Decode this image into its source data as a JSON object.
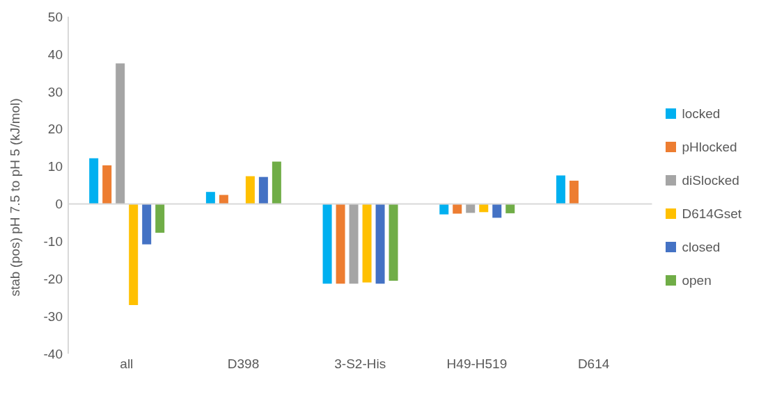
{
  "chart_data": {
    "type": "bar",
    "ylabel": "stab (pos) pH 7.5 to pH 5 (kJ/mol)",
    "categories": [
      "all",
      "D398",
      "3-S2-His",
      "H49-H519",
      "D614"
    ],
    "series": [
      {
        "name": "locked",
        "color": "#00b0f0",
        "values": [
          12.2,
          3.2,
          -21.3,
          -2.8,
          7.6
        ]
      },
      {
        "name": "pHlocked",
        "color": "#ed7d31",
        "values": [
          10.3,
          2.4,
          -21.3,
          -2.6,
          6.2
        ]
      },
      {
        "name": "diSlocked",
        "color": "#a5a5a5",
        "values": [
          37.5,
          null,
          -21.3,
          -2.4,
          null
        ]
      },
      {
        "name": "D614Gset",
        "color": "#ffc000",
        "values": [
          -27,
          7.4,
          -21,
          -2.2,
          null
        ]
      },
      {
        "name": "closed",
        "color": "#4472c4",
        "values": [
          -10.8,
          7.2,
          -21.3,
          -3.7,
          null
        ]
      },
      {
        "name": "open",
        "color": "#70ad47",
        "values": [
          -7.7,
          11.3,
          -20.5,
          -2.5,
          null
        ]
      }
    ],
    "ylim": [
      -40,
      50
    ],
    "yticks": [
      -40,
      -30,
      -20,
      -10,
      0,
      10,
      20,
      30,
      40,
      50
    ],
    "ref_lines": [
      {
        "axis": "y",
        "value": 0,
        "color": "#d9d9d9"
      }
    ],
    "legend": "right"
  }
}
